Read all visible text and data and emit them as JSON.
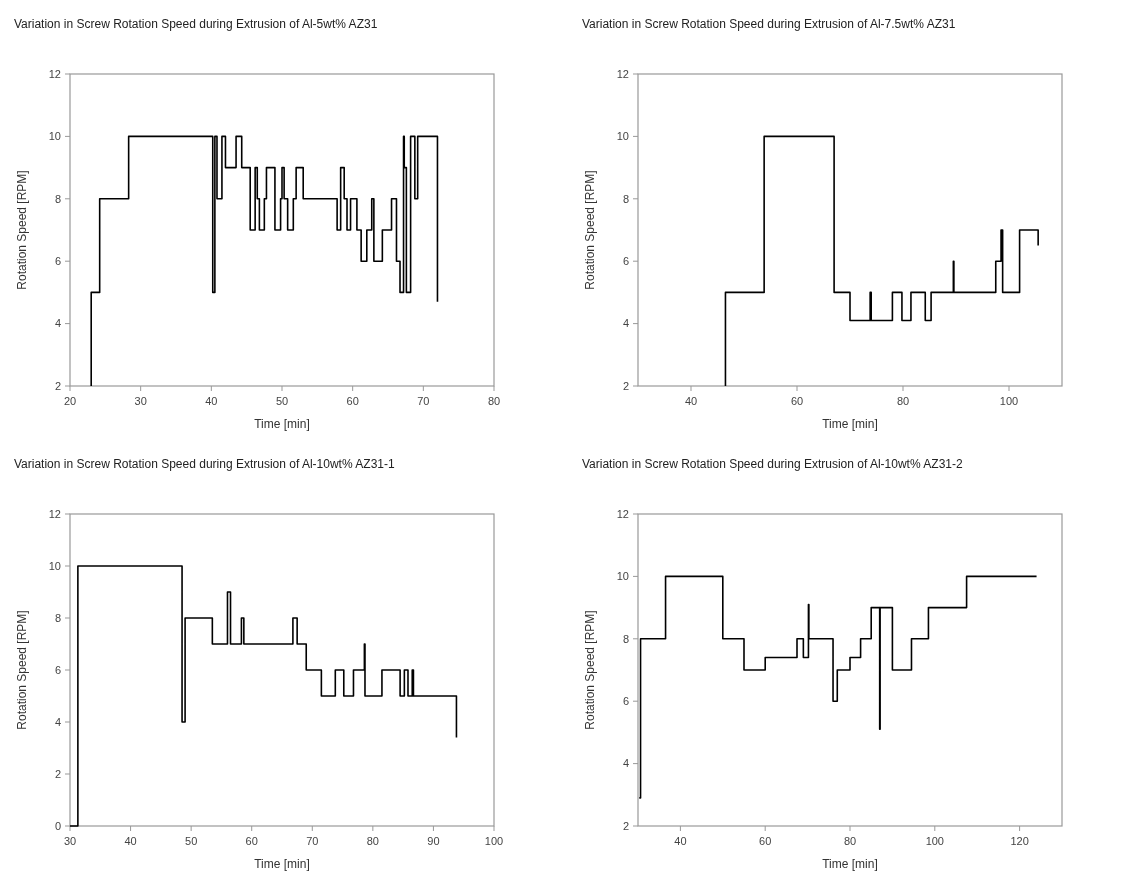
{
  "chart_data": [
    {
      "type": "step",
      "title": "Variation in Screw Rotation Speed during Extrusion of Al-5wt% AZ31",
      "xlabel": "Time [min]",
      "ylabel": "Rotation Speed [RPM]",
      "color": "#000000",
      "xlim": [
        20,
        80
      ],
      "xticks": [
        20,
        30,
        40,
        50,
        60,
        70,
        80
      ],
      "ylim": [
        2,
        12
      ],
      "yticks": [
        2,
        4,
        6,
        8,
        10,
        12
      ],
      "x": [
        23,
        23,
        24.2,
        28.3,
        40.2,
        40.5,
        40.8,
        41.5,
        42,
        43.5,
        44.3,
        45.5,
        46.2,
        46.5,
        46.8,
        47.5,
        47.8,
        49,
        49.8,
        50,
        50.3,
        50.8,
        51.6,
        52,
        53,
        57.8,
        58.3,
        58.8,
        59.2,
        59.7,
        60.6,
        61.2,
        62,
        62.7,
        63,
        64.2,
        65.5,
        66.2,
        66.7,
        67.2,
        67.3,
        67.6,
        68.2,
        68.8,
        69.2,
        72,
        72
      ],
      "values": [
        2,
        5,
        8,
        10,
        5,
        10,
        8,
        10,
        9,
        10,
        9,
        7,
        9,
        8,
        7,
        8,
        9,
        7,
        8,
        9,
        8,
        7,
        8,
        9,
        8,
        7,
        9,
        8,
        7,
        8,
        7,
        6,
        7,
        8,
        6,
        7,
        8,
        6,
        5,
        10,
        9,
        5,
        10,
        8,
        10,
        10,
        4.7
      ]
    },
    {
      "type": "step",
      "title": "Variation in Screw Rotation Speed during Extrusion of Al-7.5wt% AZ31",
      "xlabel": "Time [min]",
      "ylabel": "Rotation Speed [RPM]",
      "color": "#000000",
      "xlim": [
        30,
        110
      ],
      "xticks": [
        40,
        60,
        80,
        100
      ],
      "ylim": [
        2,
        12
      ],
      "yticks": [
        2,
        4,
        6,
        8,
        10,
        12
      ],
      "x": [
        46.5,
        46.5,
        53.8,
        67,
        70,
        73.8,
        74,
        78,
        79.8,
        81.5,
        84.2,
        85.3,
        89.5,
        89.6,
        97.5,
        98.5,
        98.8,
        102,
        105.5,
        105.5
      ],
      "values": [
        2,
        5,
        10,
        5,
        4.1,
        5,
        4.1,
        5,
        4.1,
        5,
        4.1,
        5,
        6,
        5,
        6,
        7,
        5,
        7,
        7,
        6.5
      ]
    },
    {
      "type": "step",
      "title": "Variation in Screw Rotation Speed during Extrusion of Al-10wt% AZ31-1",
      "xlabel": "Time [min]",
      "ylabel": "Rotation Speed [RPM]",
      "color": "#000000",
      "xlim": [
        30,
        100
      ],
      "xticks": [
        30,
        40,
        50,
        60,
        70,
        80,
        90,
        100
      ],
      "ylim": [
        0,
        12
      ],
      "yticks": [
        0,
        2,
        4,
        6,
        8,
        10,
        12
      ],
      "x": [
        30,
        31.3,
        48.5,
        49,
        53.5,
        56,
        56.5,
        58.3,
        58.7,
        66.8,
        67.5,
        69,
        71.5,
        73.8,
        75.2,
        76.8,
        78.6,
        78.7,
        81.5,
        84.5,
        85.2,
        85.8,
        86.5,
        86.7,
        93.8,
        93.8
      ],
      "values": [
        0,
        10,
        4,
        8,
        7,
        9,
        7,
        8,
        7,
        8,
        7,
        6,
        5,
        6,
        5,
        6,
        7,
        5,
        6,
        5,
        6,
        5,
        6,
        5,
        5,
        3.4
      ]
    },
    {
      "type": "step",
      "title": "Variation in Screw Rotation Speed during Extrusion of Al-10wt% AZ31-2",
      "xlabel": "Time [min]",
      "ylabel": "Rotation Speed [RPM]",
      "color": "#000000",
      "xlim": [
        30,
        130
      ],
      "xticks": [
        40,
        60,
        80,
        100,
        120
      ],
      "ylim": [
        2,
        12
      ],
      "yticks": [
        2,
        4,
        6,
        8,
        10,
        12
      ],
      "x": [
        30.3,
        30.6,
        36.5,
        50,
        55,
        60,
        67.5,
        69,
        70.2,
        70.3,
        76,
        77,
        80,
        82.5,
        85,
        87,
        87.1,
        90,
        94.5,
        98.5,
        107.5,
        124
      ],
      "values": [
        2.9,
        8,
        10,
        8,
        7,
        7.4,
        8,
        7.4,
        9.1,
        8,
        6,
        7,
        7.4,
        8,
        9,
        5.1,
        9,
        7,
        8,
        9,
        10,
        10
      ]
    }
  ]
}
